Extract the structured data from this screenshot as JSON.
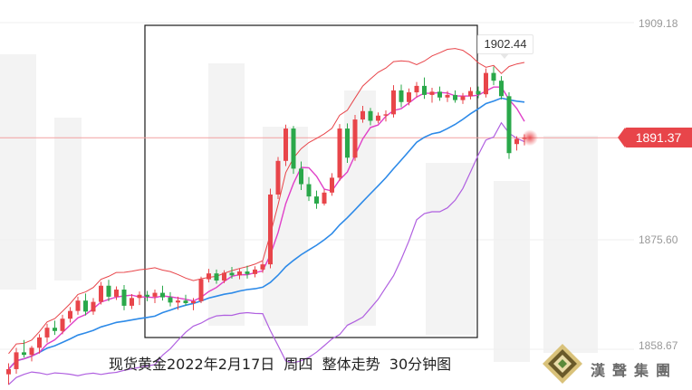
{
  "chart_data": {
    "type": "candlestick",
    "title": "现货黄金2022年2月17日  周四  整体走势  30分钟图",
    "y_ticks": [
      "1909.18",
      "1875.60",
      "1858.67"
    ],
    "last_price": "1891.37",
    "high_label": "1902.44",
    "ylim": [
      1853,
      1912
    ],
    "colors": {
      "up": "#e8454a",
      "down": "#2aa84a",
      "bb_band": "#e8454a",
      "bb_lower": "#b060e0",
      "ma_blue": "#2d8ae8",
      "ma_magenta": "#e040c8"
    },
    "candles": [
      {
        "o": 1854.8,
        "h": 1856.5,
        "l": 1853.2,
        "c": 1855.6
      },
      {
        "o": 1855.6,
        "h": 1858.9,
        "l": 1854.9,
        "c": 1858.2
      },
      {
        "o": 1858.2,
        "h": 1860.1,
        "l": 1857.4,
        "c": 1857.8
      },
      {
        "o": 1857.8,
        "h": 1859.2,
        "l": 1856.8,
        "c": 1858.9
      },
      {
        "o": 1858.9,
        "h": 1861.0,
        "l": 1858.0,
        "c": 1860.5
      },
      {
        "o": 1860.5,
        "h": 1862.6,
        "l": 1859.7,
        "c": 1862.0
      },
      {
        "o": 1862.0,
        "h": 1863.1,
        "l": 1860.9,
        "c": 1861.5
      },
      {
        "o": 1861.5,
        "h": 1864.0,
        "l": 1861.0,
        "c": 1863.4
      },
      {
        "o": 1863.4,
        "h": 1865.2,
        "l": 1862.8,
        "c": 1864.6
      },
      {
        "o": 1864.6,
        "h": 1866.8,
        "l": 1864.0,
        "c": 1866.2
      },
      {
        "o": 1866.2,
        "h": 1867.3,
        "l": 1863.9,
        "c": 1864.5
      },
      {
        "o": 1864.5,
        "h": 1866.6,
        "l": 1864.0,
        "c": 1866.0
      },
      {
        "o": 1866.0,
        "h": 1869.1,
        "l": 1865.6,
        "c": 1868.5
      },
      {
        "o": 1868.5,
        "h": 1869.4,
        "l": 1866.1,
        "c": 1866.8
      },
      {
        "o": 1866.8,
        "h": 1868.4,
        "l": 1866.3,
        "c": 1867.9
      },
      {
        "o": 1867.9,
        "h": 1868.6,
        "l": 1864.7,
        "c": 1865.4
      },
      {
        "o": 1865.4,
        "h": 1867.2,
        "l": 1864.9,
        "c": 1866.6
      },
      {
        "o": 1866.6,
        "h": 1867.6,
        "l": 1865.5,
        "c": 1867.1
      },
      {
        "o": 1867.1,
        "h": 1867.7,
        "l": 1866.1,
        "c": 1866.8
      },
      {
        "o": 1866.8,
        "h": 1867.9,
        "l": 1865.8,
        "c": 1867.4
      },
      {
        "o": 1867.4,
        "h": 1868.5,
        "l": 1866.2,
        "c": 1866.7
      },
      {
        "o": 1866.7,
        "h": 1867.5,
        "l": 1865.3,
        "c": 1865.9
      },
      {
        "o": 1865.9,
        "h": 1866.8,
        "l": 1864.8,
        "c": 1866.2
      },
      {
        "o": 1866.2,
        "h": 1867.1,
        "l": 1865.4,
        "c": 1865.8
      },
      {
        "o": 1865.8,
        "h": 1866.6,
        "l": 1864.7,
        "c": 1866.1
      },
      {
        "o": 1866.1,
        "h": 1869.9,
        "l": 1865.8,
        "c": 1869.5
      },
      {
        "o": 1869.5,
        "h": 1871.1,
        "l": 1869.0,
        "c": 1870.4
      },
      {
        "o": 1870.4,
        "h": 1871.0,
        "l": 1868.8,
        "c": 1869.3
      },
      {
        "o": 1869.3,
        "h": 1870.9,
        "l": 1868.9,
        "c": 1870.5
      },
      {
        "o": 1870.5,
        "h": 1871.4,
        "l": 1869.6,
        "c": 1870.1
      },
      {
        "o": 1870.1,
        "h": 1871.2,
        "l": 1869.5,
        "c": 1870.7
      },
      {
        "o": 1870.7,
        "h": 1871.6,
        "l": 1869.6,
        "c": 1870.3
      },
      {
        "o": 1870.3,
        "h": 1871.5,
        "l": 1869.8,
        "c": 1871.0
      },
      {
        "o": 1871.0,
        "h": 1872.3,
        "l": 1870.5,
        "c": 1871.8
      },
      {
        "o": 1871.8,
        "h": 1883.5,
        "l": 1871.2,
        "c": 1882.6
      },
      {
        "o": 1882.6,
        "h": 1888.4,
        "l": 1881.9,
        "c": 1887.8
      },
      {
        "o": 1887.8,
        "h": 1893.4,
        "l": 1887.0,
        "c": 1892.8
      },
      {
        "o": 1892.8,
        "h": 1893.2,
        "l": 1885.8,
        "c": 1886.6
      },
      {
        "o": 1886.6,
        "h": 1887.7,
        "l": 1883.3,
        "c": 1884.2
      },
      {
        "o": 1884.2,
        "h": 1885.3,
        "l": 1881.6,
        "c": 1882.3
      },
      {
        "o": 1882.3,
        "h": 1883.2,
        "l": 1880.4,
        "c": 1881.2
      },
      {
        "o": 1881.2,
        "h": 1883.4,
        "l": 1880.9,
        "c": 1882.9
      },
      {
        "o": 1882.9,
        "h": 1885.9,
        "l": 1882.4,
        "c": 1885.2
      },
      {
        "o": 1885.2,
        "h": 1893.5,
        "l": 1884.7,
        "c": 1892.8
      },
      {
        "o": 1892.8,
        "h": 1893.6,
        "l": 1887.5,
        "c": 1888.3
      },
      {
        "o": 1888.3,
        "h": 1894.9,
        "l": 1887.8,
        "c": 1894.2
      },
      {
        "o": 1894.2,
        "h": 1896.3,
        "l": 1893.7,
        "c": 1895.5
      },
      {
        "o": 1895.5,
        "h": 1896.0,
        "l": 1893.3,
        "c": 1894.0
      },
      {
        "o": 1894.0,
        "h": 1895.3,
        "l": 1893.6,
        "c": 1894.8
      },
      {
        "o": 1894.8,
        "h": 1895.6,
        "l": 1893.9,
        "c": 1895.0
      },
      {
        "o": 1895.0,
        "h": 1899.5,
        "l": 1894.5,
        "c": 1898.7
      },
      {
        "o": 1898.7,
        "h": 1899.6,
        "l": 1896.1,
        "c": 1896.9
      },
      {
        "o": 1896.9,
        "h": 1899.0,
        "l": 1896.4,
        "c": 1898.4
      },
      {
        "o": 1898.4,
        "h": 1900.0,
        "l": 1897.6,
        "c": 1899.4
      },
      {
        "o": 1899.4,
        "h": 1900.7,
        "l": 1897.4,
        "c": 1898.0
      },
      {
        "o": 1898.0,
        "h": 1899.1,
        "l": 1896.8,
        "c": 1898.5
      },
      {
        "o": 1898.5,
        "h": 1899.3,
        "l": 1897.1,
        "c": 1897.6
      },
      {
        "o": 1897.6,
        "h": 1898.6,
        "l": 1896.9,
        "c": 1898.0
      },
      {
        "o": 1898.0,
        "h": 1898.7,
        "l": 1896.8,
        "c": 1897.2
      },
      {
        "o": 1897.2,
        "h": 1898.3,
        "l": 1896.6,
        "c": 1897.8
      },
      {
        "o": 1897.8,
        "h": 1899.2,
        "l": 1897.3,
        "c": 1898.6
      },
      {
        "o": 1898.6,
        "h": 1899.3,
        "l": 1897.5,
        "c": 1898.1
      },
      {
        "o": 1898.1,
        "h": 1902.1,
        "l": 1897.6,
        "c": 1901.4
      },
      {
        "o": 1901.4,
        "h": 1902.4,
        "l": 1899.5,
        "c": 1900.2
      },
      {
        "o": 1900.2,
        "h": 1900.9,
        "l": 1897.3,
        "c": 1897.8
      },
      {
        "o": 1897.8,
        "h": 1898.4,
        "l": 1888.1,
        "c": 1889.0
      },
      {
        "o": 1890.4,
        "h": 1891.6,
        "l": 1889.4,
        "c": 1891.2
      },
      {
        "o": 1891.2,
        "h": 1891.9,
        "l": 1890.2,
        "c": 1891.37
      }
    ]
  },
  "logo": {
    "text": "漢聲集團"
  }
}
